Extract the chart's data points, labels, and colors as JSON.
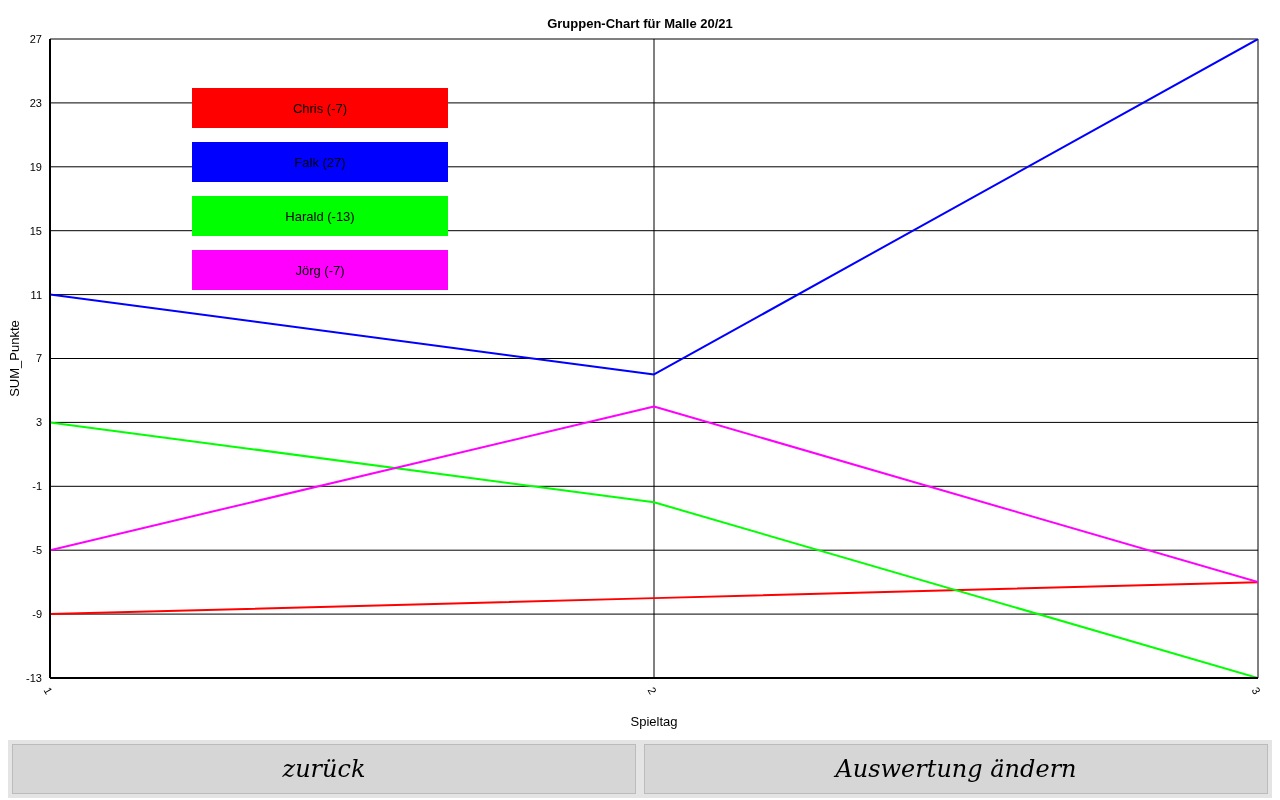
{
  "chart_data": {
    "type": "line",
    "title": "Gruppen-Chart für Malle 20/21",
    "xlabel": "Spieltag",
    "ylabel": "SUM_Punkte",
    "x": [
      1,
      2,
      3
    ],
    "series": [
      {
        "name": "Chris (-7)",
        "color": "#ff0000",
        "values": [
          -9,
          -8,
          -7
        ]
      },
      {
        "name": "Falk (27)",
        "color": "#0000ff",
        "values": [
          11,
          6,
          27
        ]
      },
      {
        "name": "Harald (-13)",
        "color": "#00ff00",
        "values": [
          3,
          -2,
          -13
        ]
      },
      {
        "name": "Jörg (-7)",
        "color": "#ff00ff",
        "values": [
          -5,
          4,
          -7
        ]
      }
    ],
    "xlim": [
      1,
      3
    ],
    "xticks": [
      1,
      2,
      3
    ],
    "ylim": [
      -13,
      27
    ],
    "yticks": [
      -13,
      -9,
      -5,
      -1,
      3,
      7,
      11,
      15,
      19,
      23,
      27
    ],
    "grid": true,
    "legend": "top left",
    "marker": "none",
    "line_style": "solid",
    "annotations": [
      "zurück",
      "Auswertung ändern"
    ]
  }
}
